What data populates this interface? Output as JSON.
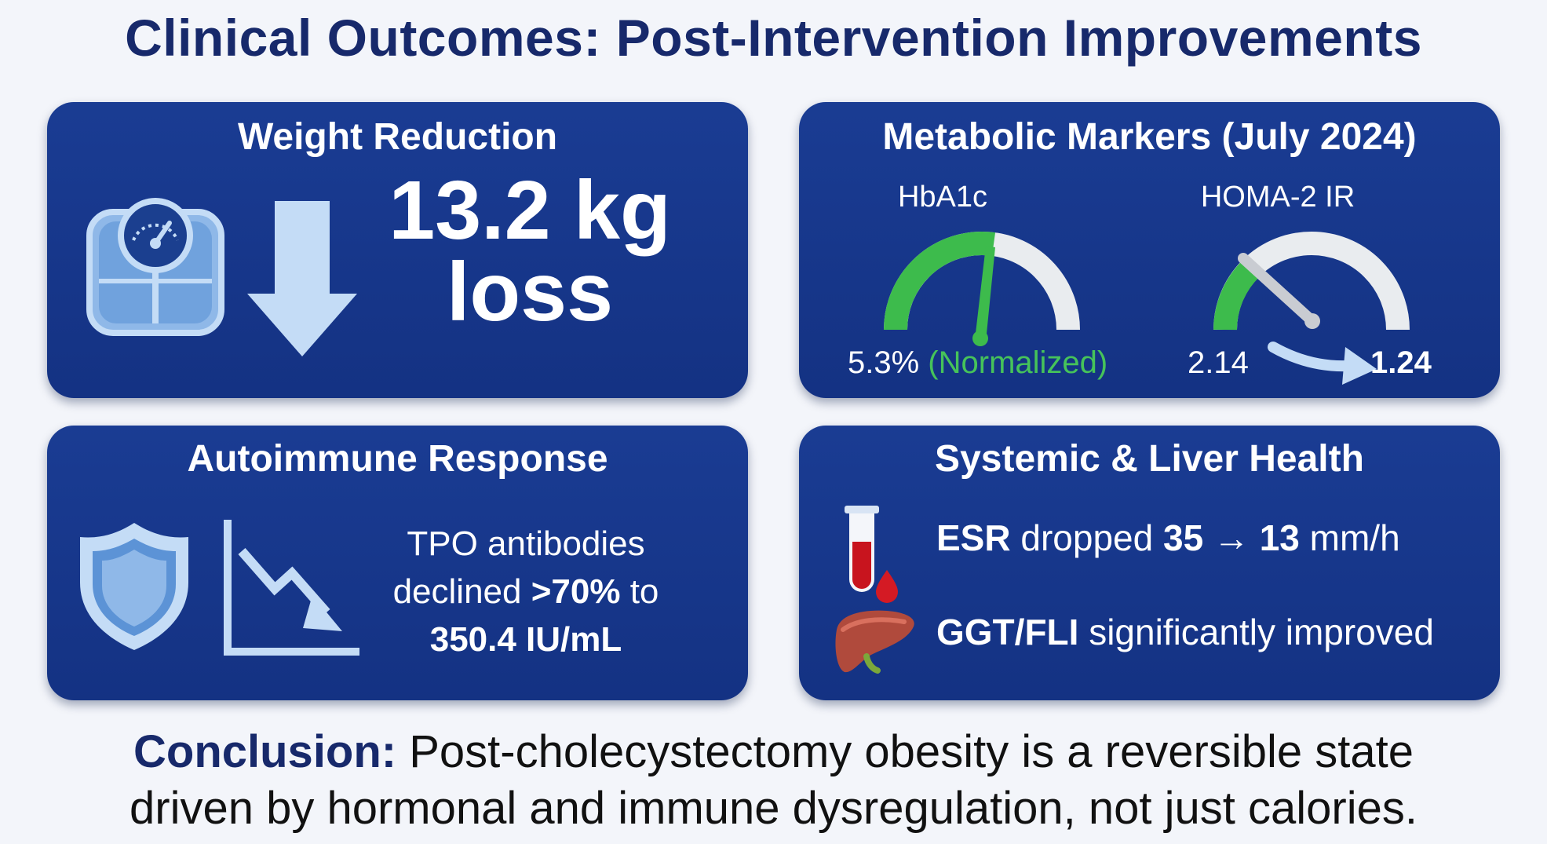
{
  "title": "Clinical Outcomes: Post-Intervention Improvements",
  "weight": {
    "title": "Weight Reduction",
    "value": "13.2 kg",
    "unit_line": "loss",
    "icons": [
      "scale-icon",
      "down-arrow-icon"
    ]
  },
  "metabolic": {
    "title": "Metabolic Markers (July 2024)",
    "hba1c": {
      "label": "HbA1c",
      "value": "5.3%",
      "note": "(Normalized)"
    },
    "homa": {
      "label": "HOMA-2 IR",
      "before": "2.14",
      "after": "1.24"
    }
  },
  "autoimmune": {
    "title": "Autoimmune Response",
    "line1": "TPO antibodies",
    "line2_a": "declined ",
    "line2_b": ">70%",
    "line2_c": " to",
    "line3": "350.4 IU/mL"
  },
  "systemic": {
    "title": "Systemic & Liver Health",
    "esr_label": "ESR",
    "esr_text": " dropped ",
    "esr_from": "35",
    "esr_arrow": "→",
    "esr_to": "13",
    "esr_unit": " mm/h",
    "ggt_label": "GGT/FLI",
    "ggt_text": " significantly improved"
  },
  "conclusion": {
    "label": "Conclusion:",
    "line1": " Post-cholecystectomy obesity is a reversible state",
    "line2": "driven by hormonal and immune dysregulation, not just calories."
  },
  "colors": {
    "panel": "#163587",
    "title": "#17296b",
    "green": "#46c35a",
    "light_icon": "#c4dcf6",
    "blood": "#c8141e",
    "liver": "#b04a3c"
  }
}
